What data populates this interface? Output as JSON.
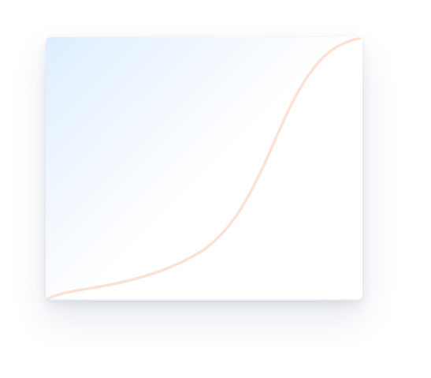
{
  "card": {
    "gradient_start_color": "#deeefe",
    "curve_color": "#fde1d4",
    "curve_shape": "s-curve"
  }
}
